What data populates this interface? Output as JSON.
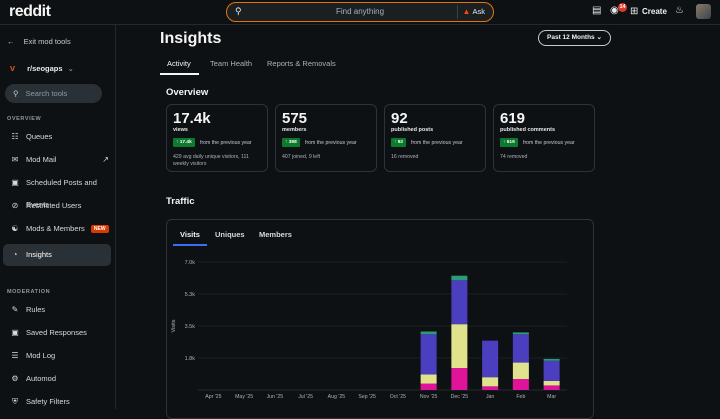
{
  "topbar": {
    "logo": "reddit",
    "search_placeholder": "Find anything",
    "ask_label": "Ask",
    "notification_count": "14",
    "create_label": "Create"
  },
  "sidebar": {
    "exit_label": "Exit mod tools",
    "subreddit": "r/seogaps",
    "search_placeholder": "Search tools",
    "overview_section": "OVERVIEW",
    "moderation_section": "MODERATION",
    "overview_items": [
      {
        "label": "Queues",
        "icon": "queues-icon"
      },
      {
        "label": "Mod Mail",
        "icon": "mail-icon"
      },
      {
        "label": "Scheduled Posts and Events",
        "icon": "calendar-icon"
      },
      {
        "label": "Restricted Users",
        "icon": "restricted-icon"
      },
      {
        "label": "Mods & Members",
        "icon": "members-icon",
        "badge": "NEW"
      },
      {
        "label": "Insights",
        "icon": "insights-icon"
      }
    ],
    "moderation_items": [
      {
        "label": "Rules",
        "icon": "rules-icon"
      },
      {
        "label": "Saved Responses",
        "icon": "responses-icon"
      },
      {
        "label": "Mod Log",
        "icon": "log-icon"
      },
      {
        "label": "Automod",
        "icon": "automod-icon"
      },
      {
        "label": "Safety Filters",
        "icon": "shield-icon"
      }
    ]
  },
  "main": {
    "title": "Insights",
    "range": "Past 12 Months",
    "tabs": [
      "Activity",
      "Team Health",
      "Reports & Removals"
    ],
    "overview_heading": "Overview",
    "traffic_heading": "Traffic",
    "cards": [
      {
        "value": "17.4k",
        "label": "views",
        "change": "17.4k",
        "prev": "from the previous year",
        "sub": "429 avg daily unique visitors, 111 weekly visitors"
      },
      {
        "value": "575",
        "label": "members",
        "change": "398",
        "prev": "from the previous year",
        "sub": "407 joined, 9 left"
      },
      {
        "value": "92",
        "label": "published posts",
        "change": "92",
        "prev": "from the previous year",
        "sub": "16 removed"
      },
      {
        "value": "619",
        "label": "published comments",
        "change": "619",
        "prev": "from the previous year",
        "sub": "74 removed"
      }
    ],
    "traffic_tabs": [
      "Visits",
      "Uniques",
      "Members"
    ]
  },
  "colors": {
    "accent": "#ff4500",
    "green": "#0c7a2e",
    "series_purple": "#4b3fbf",
    "series_khaki": "#dfe38c",
    "series_magenta": "#e0149b",
    "series_teal": "#2a9d78"
  },
  "chart_data": {
    "type": "bar",
    "stacked": true,
    "ylabel": "Visits",
    "ylim": [
      0,
      7000
    ],
    "yticks": [
      "1.8k",
      "3.5k",
      "5.3k",
      "7.0k"
    ],
    "categories": [
      "Apr '25",
      "May '25",
      "Jun '25",
      "Jul '25",
      "Aug '25",
      "Sep '25",
      "Oct '25",
      "Nov '25",
      "Dec '25",
      "Jan",
      "Feb",
      "Mar"
    ],
    "series": [
      {
        "name": "magenta",
        "color": "#e0149b",
        "values": [
          0,
          0,
          0,
          0,
          0,
          0,
          0,
          350,
          1200,
          200,
          600,
          250
        ]
      },
      {
        "name": "khaki",
        "color": "#dfe38c",
        "values": [
          0,
          0,
          0,
          0,
          0,
          0,
          0,
          500,
          2400,
          500,
          900,
          250
        ]
      },
      {
        "name": "purple",
        "color": "#4b3fbf",
        "values": [
          0,
          0,
          0,
          0,
          0,
          0,
          0,
          2200,
          2400,
          2000,
          1550,
          1100
        ]
      },
      {
        "name": "teal",
        "color": "#2a9d78",
        "values": [
          0,
          0,
          0,
          0,
          0,
          0,
          0,
          150,
          250,
          0,
          100,
          100
        ]
      }
    ]
  }
}
